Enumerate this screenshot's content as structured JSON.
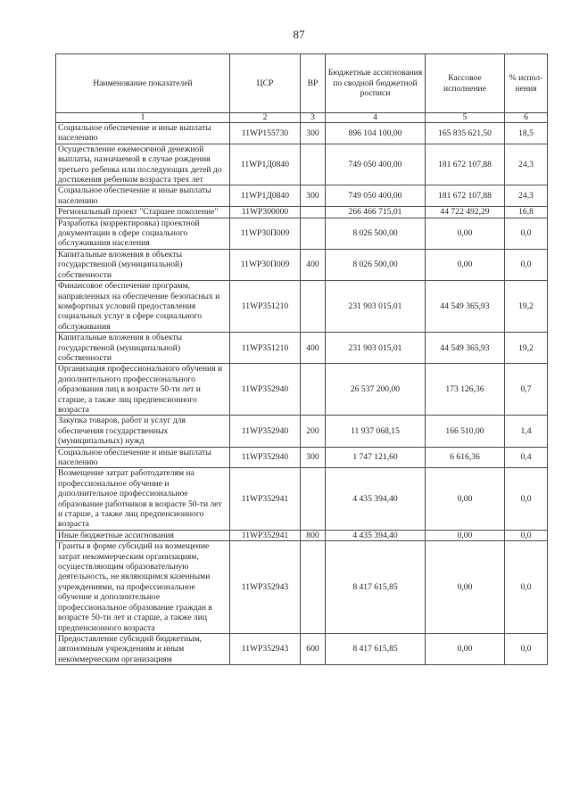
{
  "page_number": "87",
  "table": {
    "headers": [
      "Наименование показателей",
      "ЦСР",
      "ВР",
      "Бюджетные ассигнования по сводной бюджетной росписи",
      "Кассовое исполнение",
      "% испол-нения"
    ],
    "column_numbers": [
      "1",
      "2",
      "3",
      "4",
      "5",
      "6"
    ],
    "rows": [
      {
        "name": "Социальное обеспечение и иные выплаты населению",
        "csr": "11WP155730",
        "vr": "300",
        "budget": "896 104 100,00",
        "cash": "165 835 621,50",
        "pct": "18,5"
      },
      {
        "name": "Осуществление ежемесячной денежной выплаты, назначаемой в случае рождения третьего ребенка или последующих детей до достижения ребенком возраста трех лет",
        "csr": "11WP1Д0840",
        "vr": "",
        "budget": "749 050 400,00",
        "cash": "181 672 107,88",
        "pct": "24,3"
      },
      {
        "name": "Социальное обеспечение и иные выплаты населению",
        "csr": "11WP1Д0840",
        "vr": "300",
        "budget": "749 050 400,00",
        "cash": "181 672 107,88",
        "pct": "24,3"
      },
      {
        "name": "Региональный проект \"Старшее поколение\"",
        "csr": "11WP300000",
        "vr": "",
        "budget": "266 466 715,01",
        "cash": "44 722 492,29",
        "pct": "16,8"
      },
      {
        "name": "Разработка (корректировка) проектной документации в сфере социального обслуживания населения",
        "csr": "11WP30П009",
        "vr": "",
        "budget": "8 026 500,00",
        "cash": "0,00",
        "pct": "0,0"
      },
      {
        "name": "Капитальные вложения в объекты государствешой (муниципальной) собственности",
        "csr": "11WP30П009",
        "vr": "400",
        "budget": "8 026 500,00",
        "cash": "0,00",
        "pct": "0,0"
      },
      {
        "name": "Финансовое обеспечение программ, направленных на обеспечение безопасных и комфортных условий предоставления социальных услуг в сфере социального обслуживания",
        "csr": "11WP351210",
        "vr": "",
        "budget": "231 903 015,01",
        "cash": "44 549 365,93",
        "pct": "19,2"
      },
      {
        "name": "Капитальные вложения в объекты государственой (муниципальной) собственности",
        "csr": "11WP351210",
        "vr": "400",
        "budget": "231 903 015,01",
        "cash": "44 549 365,93",
        "pct": "19,2"
      },
      {
        "name": "Организация профессионального обучения и дополнительного профессионального образования лиц в возрасте 50-ти лет и старше, а также лиц предпенсионного возраста",
        "csr": "11WP352940",
        "vr": "",
        "budget": "26 537 200,00",
        "cash": "173 126,36",
        "pct": "0,7"
      },
      {
        "name": "Закупка товаров, работ и услуг для обеспечения государственных (муниципальных) нужд",
        "csr": "11WP352940",
        "vr": "200",
        "budget": "11 937 068,15",
        "cash": "166 510,00",
        "pct": "1,4"
      },
      {
        "name": "Социальное обеспечение и иные выплаты населению",
        "csr": "11WP352940",
        "vr": "300",
        "budget": "1 747 121,60",
        "cash": "6 616,36",
        "pct": "0,4"
      },
      {
        "name": "Возмещение затрат работодателям на профессиональное обучение и дополнительное профессиональное образование работников в возрасте 50-ти лет и старше, а также лиц предпенсионного возраста",
        "csr": "11WP352941",
        "vr": "",
        "budget": "4 435 394,40",
        "cash": "0,00",
        "pct": "0,0"
      },
      {
        "name": "Иные бюджетные ассигнования",
        "csr": "11WP352941",
        "vr": "800",
        "budget": "4 435 394,40",
        "cash": "0,00",
        "pct": "0,0"
      },
      {
        "name": "Гранты в форме субсидий на возмещение затрат некоммерческим организациям, осуществляющим образовательную деятельность, не являющимся казенными учреждениями, на профессиональное обучение и дополнительное профессиональное образование граждан в возрасте 50-ти лет и старше, а также лиц предпенсионного возраста",
        "csr": "11WP352943",
        "vr": "",
        "budget": "8 417 615,85",
        "cash": "0,00",
        "pct": "0,0"
      },
      {
        "name": "Предоставление субсидий бюджетным, автономным учреждениям и иным некоммерческим организациям",
        "csr": "11WP352943",
        "vr": "600",
        "budget": "8 417 615,85",
        "cash": "0,00",
        "pct": "0,0"
      }
    ]
  }
}
